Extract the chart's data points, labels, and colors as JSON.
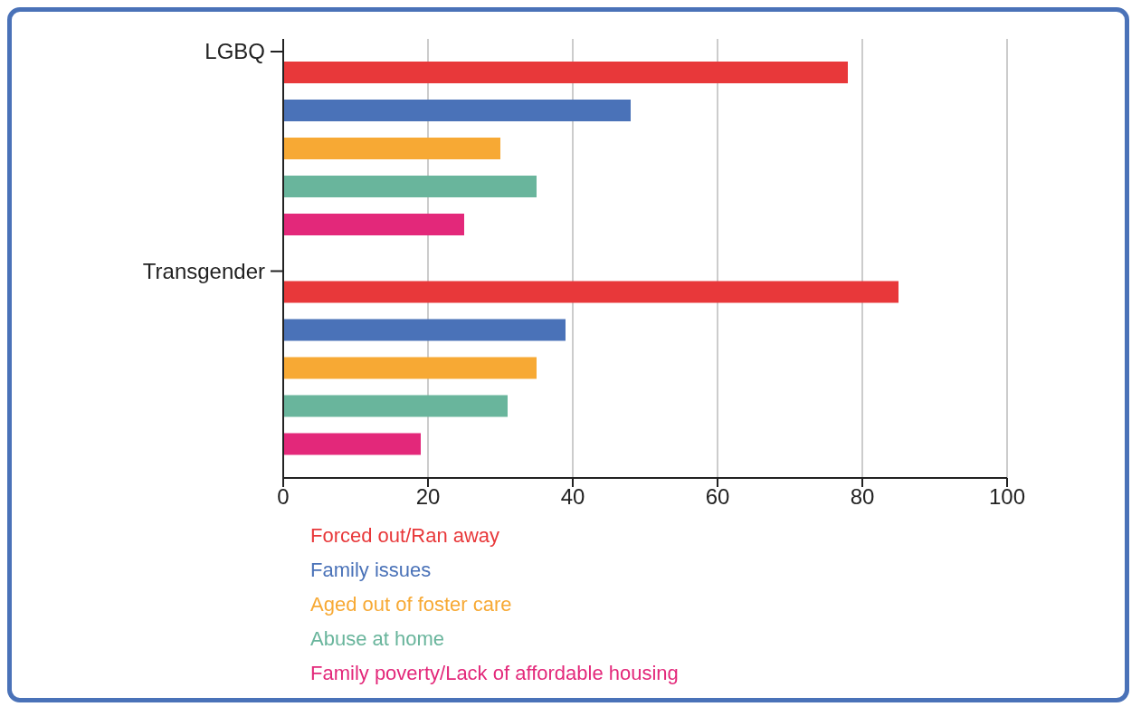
{
  "chart_data": {
    "type": "bar",
    "orientation": "horizontal",
    "categories": [
      "LGBQ",
      "Transgender"
    ],
    "series": [
      {
        "name": "Forced out/Ran away",
        "color": "#e8383a",
        "values": [
          78,
          85
        ]
      },
      {
        "name": "Family issues",
        "color": "#4a72b8",
        "values": [
          48,
          39
        ]
      },
      {
        "name": "Aged out of foster care",
        "color": "#f7a934",
        "values": [
          30,
          35
        ]
      },
      {
        "name": "Abuse at home",
        "color": "#69b59c",
        "values": [
          35,
          31
        ]
      },
      {
        "name": "Family poverty/Lack of affordable housing",
        "color": "#e3287a",
        "values": [
          25,
          19
        ]
      }
    ],
    "xlim": [
      0,
      100
    ],
    "xticks": [
      0,
      20,
      40,
      60,
      80,
      100
    ],
    "grid": "x",
    "legend": "bottom"
  }
}
